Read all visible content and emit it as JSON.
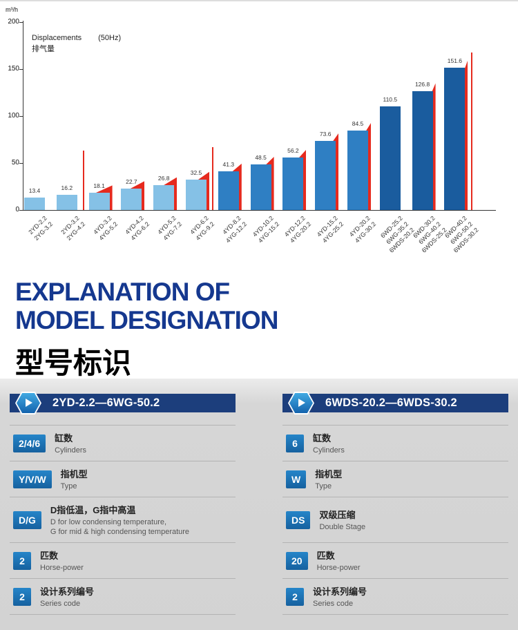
{
  "chart": {
    "unit": "m³/h",
    "legend_line1": "Displacements",
    "legend_freq": "(50Hz)",
    "legend_line2": "排气量"
  },
  "chart_data": {
    "type": "bar",
    "title": "Displacements (50Hz) 排气量",
    "ylabel": "m³/h",
    "ylim": [
      0,
      200
    ],
    "yticks": [
      0,
      50,
      100,
      150,
      200
    ],
    "grid": false,
    "legend_position": "top-left",
    "categories": [
      [
        "2YD-2.2",
        "2YG-3.2"
      ],
      [
        "2YD-3.2",
        "2YG-4.2"
      ],
      [
        "4YD-3.2",
        "4YG-5.2"
      ],
      [
        "4YD-4.2",
        "4YG-6.2"
      ],
      [
        "4YD-5.2",
        "4YG-7.2"
      ],
      [
        "4YD-6.2",
        "4YG-9.2"
      ],
      [
        "4YD-8.2",
        "4YG-12.2"
      ],
      [
        "4YD-10.2",
        "4YG-15.2"
      ],
      [
        "4YD-12.2",
        "4YG-20.2"
      ],
      [
        "4YD-15.2",
        "4YG-25.2"
      ],
      [
        "4YD-20.2",
        "4YG-30.2"
      ],
      [
        "6WD-25.2",
        "6WG-35.2",
        "6WDS-20.2"
      ],
      [
        "6WD-30.2",
        "6WG-40.2",
        "6WDS-25.2"
      ],
      [
        "6WD-40.2",
        "6WG-50.2",
        "6WDS-30.2"
      ]
    ],
    "values": [
      13.4,
      16.2,
      18.1,
      22.7,
      26.8,
      32.5,
      41.3,
      48.5,
      56.2,
      73.6,
      84.5,
      110.5,
      126.8,
      151.6
    ],
    "bar_shades": [
      "light",
      "light",
      "light",
      "light",
      "light",
      "light",
      "mid",
      "mid",
      "mid",
      "mid",
      "mid",
      "dark",
      "dark",
      "dark"
    ],
    "red_accent": [
      false,
      false,
      true,
      true,
      true,
      true,
      true,
      true,
      true,
      true,
      true,
      false,
      true,
      true
    ],
    "separators": [
      {
        "after_index": 1,
        "height": 63
      },
      {
        "after_index": 5,
        "height": 67
      },
      {
        "after_index": 13,
        "height": 168
      }
    ],
    "colors": {
      "light": "#85c1e6",
      "mid": "#2f7fc3",
      "dark": "#1a5c9e",
      "red": "#e62a1e"
    }
  },
  "heading": {
    "title_line1": "EXPLANATION OF",
    "title_line2": "MODEL DESIGNATION",
    "subtitle": "型号标识"
  },
  "panels": [
    {
      "header": "2YD-2.2—6WG-50.2",
      "rows": [
        {
          "badge": "2/4/6",
          "zh": "缸数",
          "en": "Cylinders"
        },
        {
          "badge": "Y/V/W",
          "zh": "指机型",
          "en": "Type"
        },
        {
          "badge": "D/G",
          "zh": "D指低温，G指中高温",
          "en": "D for low condensing temperature,\nG for mid & high condensing temperature"
        },
        {
          "badge": "2",
          "zh": "匹数",
          "en": "Horse-power"
        },
        {
          "badge": "2",
          "zh": "设计系列编号",
          "en": "Series code"
        }
      ]
    },
    {
      "header": "6WDS-20.2—6WDS-30.2",
      "rows": [
        {
          "badge": "6",
          "zh": "缸数",
          "en": "Cylinders"
        },
        {
          "badge": "W",
          "zh": "指机型",
          "en": "Type"
        },
        {
          "badge": "DS",
          "zh": "双级压缩",
          "en": "Double Stage"
        },
        {
          "badge": "20",
          "zh": "匹数",
          "en": "Horse-power"
        },
        {
          "badge": "2",
          "zh": "设计系列编号",
          "en": "Series code"
        }
      ]
    }
  ]
}
